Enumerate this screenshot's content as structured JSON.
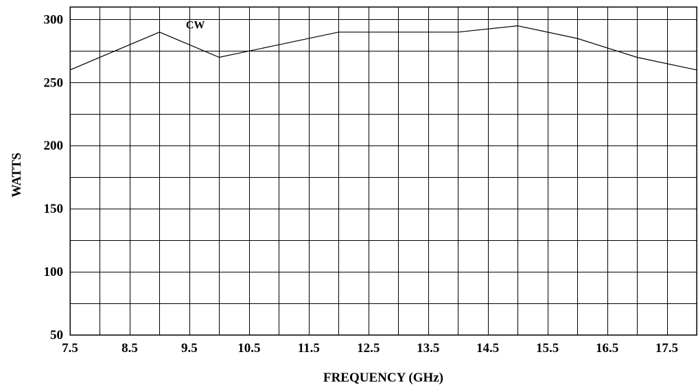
{
  "chart_data": {
    "type": "line",
    "title": "",
    "xlabel": "FREQUENCY (GHz)",
    "ylabel": "WATTS",
    "xlim": [
      7.5,
      18
    ],
    "ylim": [
      50,
      310
    ],
    "x_tick_labels": [
      "7.5",
      "8.5",
      "9.5",
      "10.5",
      "11.5",
      "12.5",
      "13.5",
      "14.5",
      "15.5",
      "16.5",
      "17.5"
    ],
    "x_tick_values": [
      7.5,
      8.5,
      9.5,
      10.5,
      11.5,
      12.5,
      13.5,
      14.5,
      15.5,
      16.5,
      17.5
    ],
    "y_tick_labels": [
      "50",
      "100",
      "150",
      "200",
      "250",
      "300"
    ],
    "y_tick_values": [
      50,
      100,
      150,
      200,
      250,
      300
    ],
    "grid": true,
    "x_grid_step": 0.5,
    "y_grid_step": 25,
    "series": [
      {
        "x": [
          7.5,
          9.0,
          10.0,
          11.0,
          12.0,
          13.0,
          14.0,
          15.0,
          16.0,
          17.0,
          18.0
        ],
        "y": [
          260,
          290,
          270,
          280,
          290,
          290,
          290,
          295,
          285,
          270,
          260
        ]
      }
    ],
    "annotations": [
      {
        "text": "CW",
        "x": 9.6,
        "y": 296
      }
    ]
  }
}
